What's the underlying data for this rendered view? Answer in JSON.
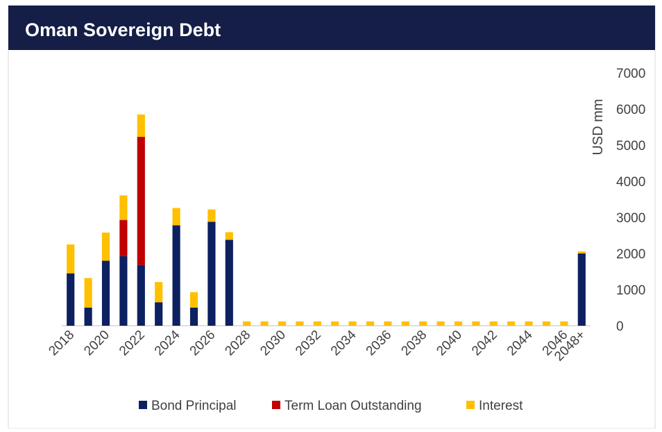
{
  "chart_data": {
    "type": "bar",
    "stacked": true,
    "title": "Oman Sovereign Debt",
    "y_label": "USD mm",
    "categories": [
      "2018",
      null,
      "2020",
      null,
      "2022",
      null,
      "2024",
      null,
      "2026",
      null,
      "2028",
      null,
      "2030",
      null,
      "2032",
      null,
      "2034",
      null,
      "2036",
      null,
      "2038",
      null,
      "2040",
      null,
      "2042",
      null,
      "2044",
      null,
      "2046",
      "2048+"
    ],
    "series": [
      {
        "name": "Bond Principal",
        "color": "#0d2060",
        "values": [
          1450,
          500,
          1800,
          1930,
          1680,
          650,
          2780,
          500,
          2880,
          2380,
          0,
          0,
          0,
          0,
          0,
          0,
          0,
          0,
          0,
          0,
          0,
          0,
          0,
          0,
          0,
          0,
          0,
          0,
          0,
          2000
        ]
      },
      {
        "name": "Term Loan Outstanding",
        "color": "#c00000",
        "values": [
          0,
          0,
          0,
          1000,
          3550,
          0,
          0,
          0,
          0,
          0,
          0,
          0,
          0,
          0,
          0,
          0,
          0,
          0,
          0,
          0,
          0,
          0,
          0,
          0,
          0,
          0,
          0,
          0,
          0,
          0
        ]
      },
      {
        "name": "Interest",
        "color": "#ffc000",
        "values": [
          800,
          820,
          780,
          680,
          620,
          560,
          480,
          430,
          340,
          210,
          120,
          120,
          120,
          120,
          120,
          120,
          120,
          120,
          120,
          120,
          120,
          120,
          120,
          120,
          120,
          120,
          120,
          120,
          120,
          60
        ]
      }
    ],
    "ylim": [
      0,
      7000
    ],
    "yticks": [
      0,
      1000,
      2000,
      3000,
      4000,
      5000,
      6000,
      7000
    ],
    "y_axis_side": "right",
    "legend": "bottom"
  }
}
